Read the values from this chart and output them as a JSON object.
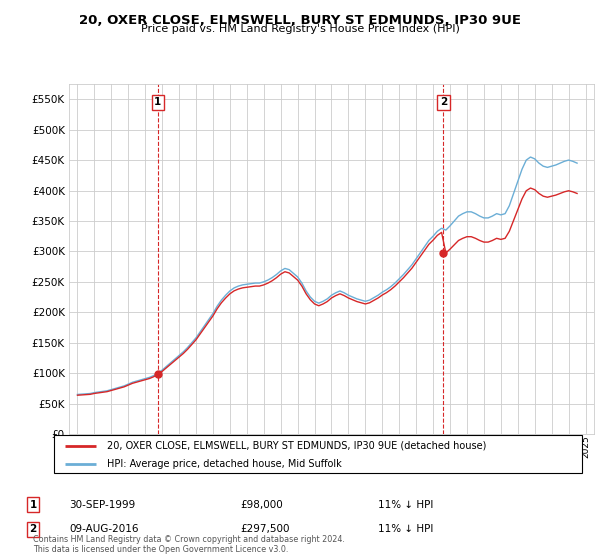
{
  "title": "20, OXER CLOSE, ELMSWELL, BURY ST EDMUNDS, IP30 9UE",
  "subtitle": "Price paid vs. HM Land Registry's House Price Index (HPI)",
  "legend_line1": "20, OXER CLOSE, ELMSWELL, BURY ST EDMUNDS, IP30 9UE (detached house)",
  "legend_line2": "HPI: Average price, detached house, Mid Suffolk",
  "footnote": "Contains HM Land Registry data © Crown copyright and database right 2024.\nThis data is licensed under the Open Government Licence v3.0.",
  "table": [
    {
      "num": "1",
      "date": "30-SEP-1999",
      "price": "£98,000",
      "hpi": "11% ↓ HPI"
    },
    {
      "num": "2",
      "date": "09-AUG-2016",
      "price": "£297,500",
      "hpi": "11% ↓ HPI"
    }
  ],
  "sale1_x": 1999.75,
  "sale1_y": 98000,
  "sale2_x": 2016.6,
  "sale2_y": 297500,
  "ylim": [
    0,
    575000
  ],
  "xlim_start": 1994.5,
  "xlim_end": 2025.5,
  "yticks": [
    0,
    50000,
    100000,
    150000,
    200000,
    250000,
    300000,
    350000,
    400000,
    450000,
    500000,
    550000
  ],
  "ytick_labels": [
    "£0",
    "£50K",
    "£100K",
    "£150K",
    "£200K",
    "£250K",
    "£300K",
    "£350K",
    "£400K",
    "£450K",
    "£500K",
    "£550K"
  ],
  "hpi_color": "#6baed6",
  "sale_color": "#d62728",
  "vline_color": "#d62728",
  "grid_color": "#cccccc",
  "bg_color": "#ffffff"
}
